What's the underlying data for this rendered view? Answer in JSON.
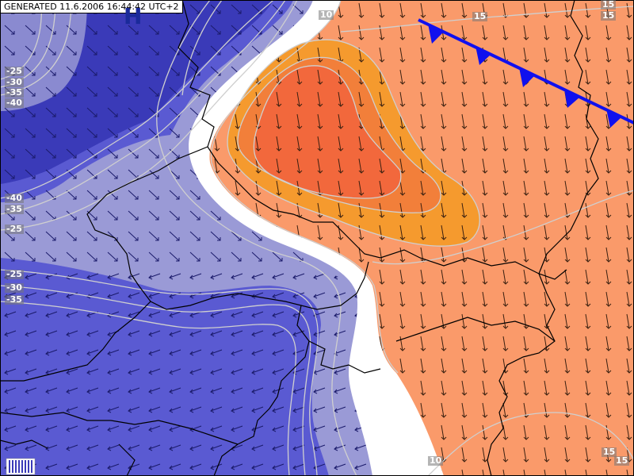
{
  "header": {
    "generated": "GENERATED 11.6.2006 16:44:42 UTC+2"
  },
  "pressure_center": "H",
  "colors": {
    "deep_blue": "#3333bb",
    "mid_blue": "#5a5ad2",
    "light_blue": "#9a9ad6",
    "white_band": "#ffffff",
    "light_orange": "#fa9a6a",
    "orange": "#f59a2e",
    "red_orange": "#f2683c",
    "front": "#1010ee",
    "border": "#000000",
    "contour": "#c8c8c8"
  },
  "contour_labels": [
    {
      "id": "l1",
      "text": "-25"
    },
    {
      "id": "l2",
      "text": "-30"
    },
    {
      "id": "l3",
      "text": "-35"
    },
    {
      "id": "l4",
      "text": "-40"
    },
    {
      "id": "l5",
      "text": "-40"
    },
    {
      "id": "l6",
      "text": "-35"
    },
    {
      "id": "l7",
      "text": "-25"
    },
    {
      "id": "l8",
      "text": "-25"
    },
    {
      "id": "l9",
      "text": "-30"
    },
    {
      "id": "l10",
      "text": "-35"
    },
    {
      "id": "l11",
      "text": "10"
    },
    {
      "id": "l12",
      "text": "15"
    },
    {
      "id": "l13",
      "text": "15"
    },
    {
      "id": "l14",
      "text": "15"
    },
    {
      "id": "l15",
      "text": "15"
    },
    {
      "id": "l16",
      "text": "15"
    },
    {
      "id": "l17",
      "text": "10"
    }
  ],
  "legend": {
    "name": "colorbar-legend"
  }
}
